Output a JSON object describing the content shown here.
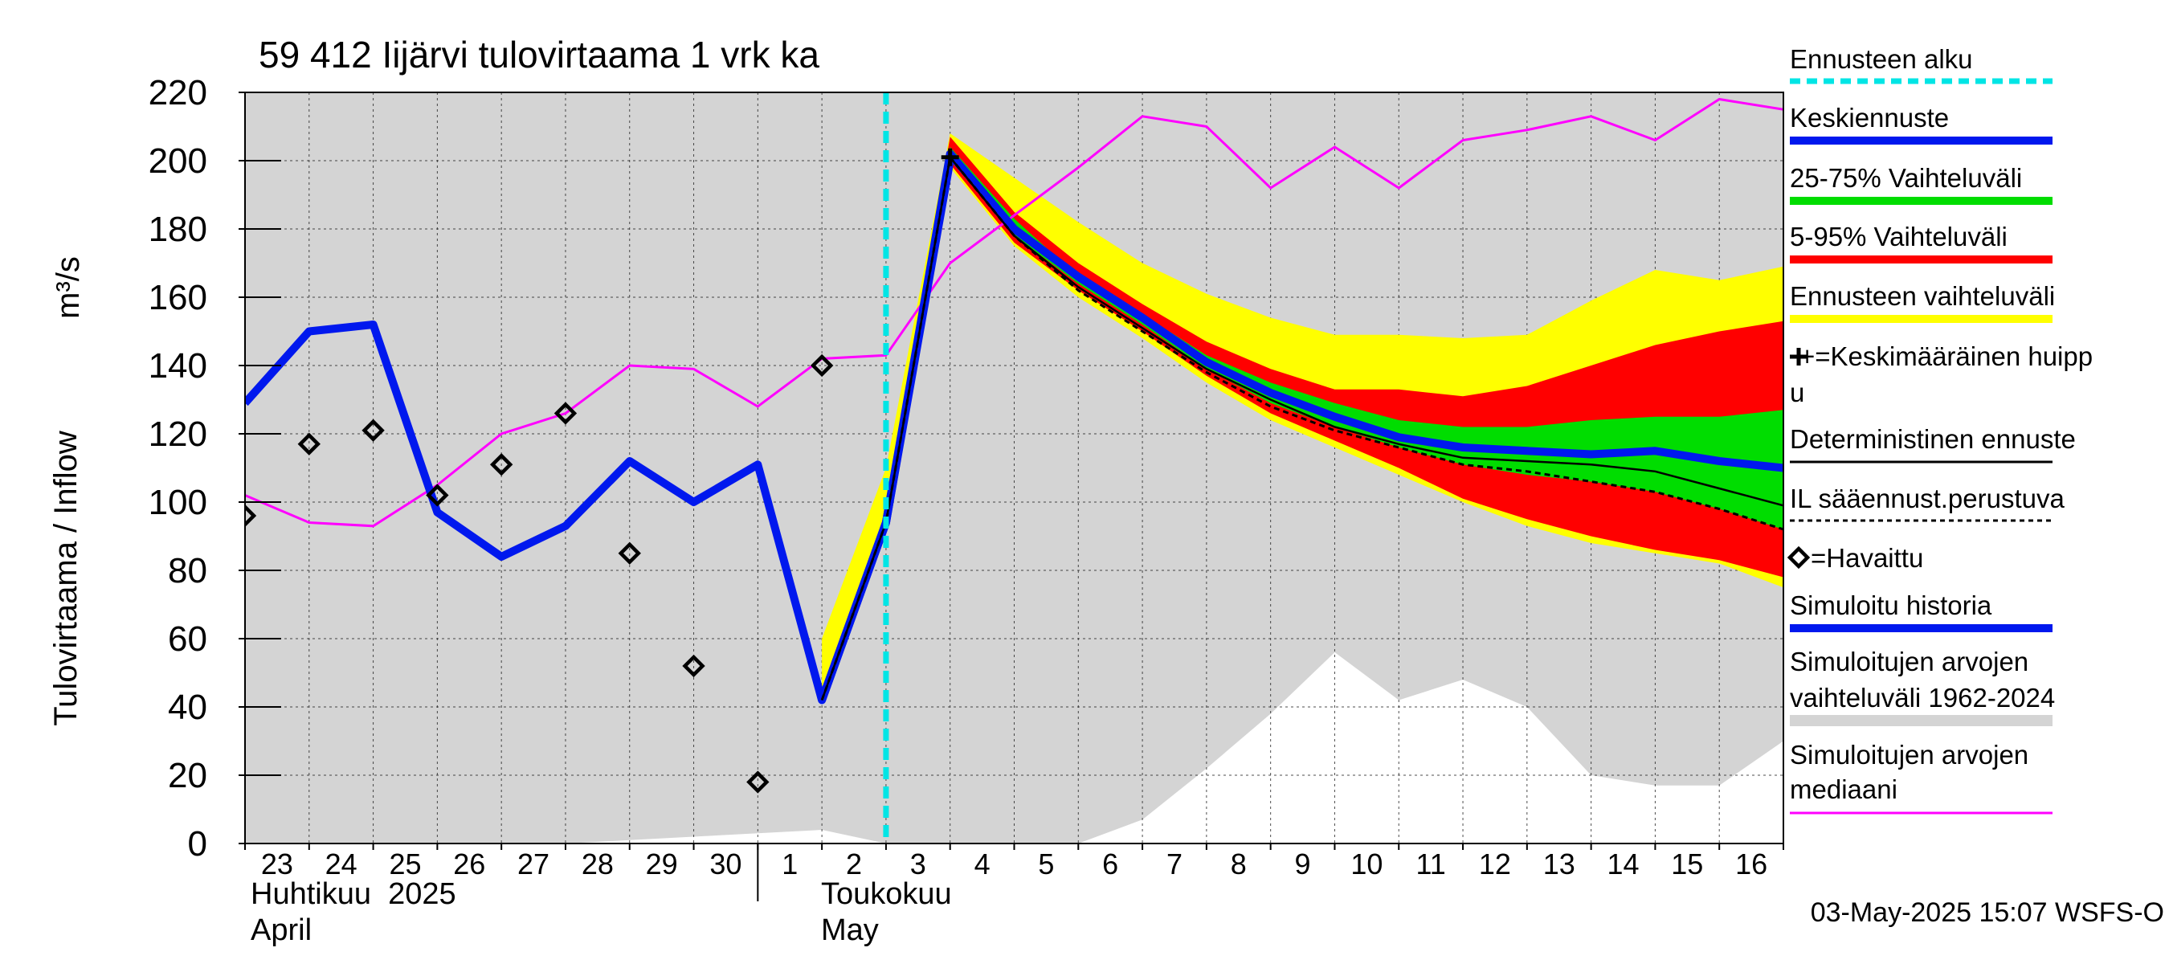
{
  "chart_data": {
    "type": "line",
    "title": "59 412 Iijärvi tulovirtaama 1 vrk ka",
    "ylabel": "Tulovirtaama / Inflow",
    "yunit": "m³/s",
    "ylim": [
      0,
      220
    ],
    "yticks": [
      "0",
      "20",
      "40",
      "60",
      "80",
      "100",
      "120",
      "140",
      "160",
      "180",
      "200",
      "220"
    ],
    "xlim": [
      0,
      24
    ],
    "day_ticks": [
      "23",
      "24",
      "25",
      "26",
      "27",
      "28",
      "29",
      "30",
      "1",
      "2",
      "3",
      "4",
      "5",
      "6",
      "7",
      "8",
      "9",
      "10",
      "11",
      "12",
      "13",
      "14",
      "15",
      "16"
    ],
    "month_labels": {
      "april_fi": "Huhtikuu  2025",
      "april_en": "April",
      "may_fi": "Toukokuu",
      "may_en": "May"
    },
    "forecast_start_x": 10,
    "timestamp": "03-May-2025 15:07 WSFS-O",
    "legend": [
      {
        "key": "forecast_start",
        "label": "Ennusteen alku",
        "color": "#00e5e5"
      },
      {
        "key": "mean_forecast",
        "label": "Keskiennuste",
        "color": "#0018ee"
      },
      {
        "key": "range_25_75",
        "label": "25-75% Vaihteluväli",
        "color": "#00dd00"
      },
      {
        "key": "range_5_95",
        "label": "5-95% Vaihteluväli",
        "color": "#ff0000"
      },
      {
        "key": "forecast_range",
        "label": "Ennusteen vaihteluväli",
        "color": "#ffff00"
      },
      {
        "key": "mean_peak",
        "label": "+=Keskimääräinen huipp",
        "label2": "u",
        "color": "#000000"
      },
      {
        "key": "deterministic",
        "label": "Deterministinen ennuste",
        "color": "#000000"
      },
      {
        "key": "il_forecast",
        "label": "IL sääennust.perustuva",
        "color": "#000000"
      },
      {
        "key": "observed",
        "label": "=Havaittu",
        "color": "#000000"
      },
      {
        "key": "sim_history",
        "label": "Simuloitu historia",
        "color": "#0018ee"
      },
      {
        "key": "sim_range",
        "label": "Simuloitujen arvojen",
        "label2": "vaihteluväli 1962-2024",
        "color": "#d4d4d4"
      },
      {
        "key": "sim_median",
        "label": "Simuloitujen arvojen",
        "label2": "mediaani",
        "color": "#ff00ff"
      }
    ],
    "series": {
      "sim_range_upper": {
        "x": [
          0,
          24
        ],
        "y": [
          220,
          220
        ]
      },
      "sim_range_lower": {
        "x": [
          0,
          1,
          2,
          3,
          4,
          5,
          6,
          7,
          8,
          9,
          10,
          11,
          12,
          13,
          14,
          15,
          16,
          17,
          18,
          19,
          20,
          21,
          22,
          23,
          24
        ],
        "y": [
          0,
          0,
          0,
          0,
          0,
          0,
          1,
          2,
          3,
          4,
          0,
          0,
          0,
          0,
          7,
          22,
          38,
          56,
          42,
          48,
          40,
          20,
          17,
          17,
          30
        ]
      },
      "median": {
        "x": [
          0,
          1,
          2,
          3,
          4,
          5,
          6,
          7,
          8,
          9,
          10,
          11,
          12,
          13,
          14,
          15,
          16,
          17,
          18,
          19,
          20,
          21,
          22,
          23,
          24
        ],
        "y": [
          102,
          94,
          93,
          105,
          120,
          126,
          140,
          139,
          128,
          142,
          143,
          170,
          184,
          198,
          213,
          210,
          192,
          204,
          192,
          206,
          209,
          213,
          206,
          218,
          215
        ]
      },
      "sim_history": {
        "x": [
          0,
          1,
          2,
          3,
          4,
          5,
          6,
          7,
          8,
          9,
          10,
          11
        ],
        "y": [
          129,
          150,
          152,
          97,
          84,
          93,
          112,
          100,
          111,
          42,
          94,
          200
        ]
      },
      "forecast_range": {
        "x": [
          9,
          10,
          11,
          12,
          13,
          14,
          15,
          16,
          17,
          18,
          19,
          20,
          21,
          22,
          23,
          24
        ],
        "upper": [
          60,
          110,
          208,
          195,
          182,
          170,
          161,
          154,
          149,
          149,
          148,
          149,
          159,
          168,
          165,
          169
        ],
        "lower": [
          42,
          92,
          198,
          175,
          160,
          148,
          135,
          124,
          116,
          108,
          100,
          93,
          88,
          85,
          82,
          75
        ]
      },
      "range_5_95": {
        "x": [
          9,
          10,
          11,
          12,
          13,
          14,
          15,
          16,
          17,
          18,
          19,
          20,
          21,
          22,
          23,
          24
        ],
        "upper": [
          42,
          94,
          207,
          185,
          170,
          158,
          147,
          139,
          133,
          133,
          131,
          134,
          140,
          146,
          150,
          153
        ],
        "lower": [
          42,
          94,
          199,
          176,
          162,
          150,
          137,
          126,
          118,
          110,
          101,
          95,
          90,
          86,
          83,
          78
        ]
      },
      "range_25_75": {
        "x": [
          9,
          10,
          11,
          12,
          13,
          14,
          15,
          16,
          17,
          18,
          19,
          20,
          21,
          22,
          23,
          24
        ],
        "upper": [
          42,
          94,
          204,
          183,
          166,
          155,
          143,
          135,
          129,
          124,
          122,
          122,
          124,
          125,
          125,
          127
        ],
        "lower": [
          42,
          94,
          201,
          178,
          164,
          152,
          139,
          129,
          122,
          116,
          111,
          108,
          106,
          103,
          98,
          92
        ]
      },
      "mean_forecast": {
        "x": [
          9,
          10,
          11,
          12,
          13,
          14,
          15,
          16,
          17,
          18,
          19,
          20,
          21,
          22,
          23,
          24
        ],
        "y": [
          42,
          94,
          202,
          180,
          166,
          154,
          141,
          132,
          125,
          119,
          116,
          115,
          114,
          115,
          112,
          110
        ]
      },
      "deterministic": {
        "x": [
          9,
          10,
          11,
          12,
          13,
          14,
          15,
          16,
          17,
          18,
          19,
          20,
          21,
          22,
          23,
          24
        ],
        "y": [
          42,
          94,
          201,
          178,
          163,
          151,
          139,
          130,
          122,
          117,
          113,
          112,
          111,
          109,
          104,
          99
        ]
      },
      "il_forecast": {
        "x": [
          9,
          10,
          11,
          12,
          13,
          14,
          15,
          16,
          17,
          18,
          19,
          20,
          21,
          22,
          23,
          24
        ],
        "y": [
          42,
          94,
          201,
          178,
          162,
          150,
          138,
          128,
          121,
          116,
          111,
          109,
          106,
          103,
          98,
          92
        ]
      },
      "observed": {
        "x": [
          0,
          1,
          2,
          3,
          4,
          5,
          6,
          7,
          8,
          9
        ],
        "y": [
          96,
          117,
          121,
          102,
          111,
          126,
          85,
          52,
          18,
          140
        ]
      },
      "mean_peak": {
        "x": 11,
        "y": 201
      }
    }
  }
}
